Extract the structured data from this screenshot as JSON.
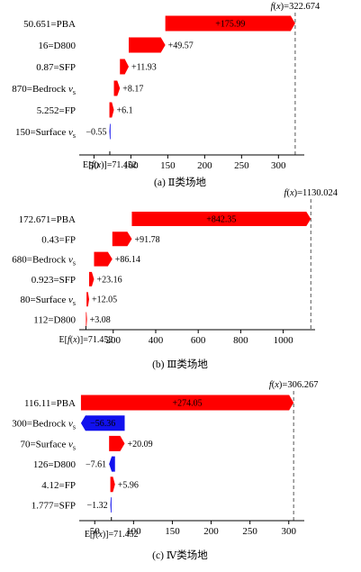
{
  "chart_data": [
    {
      "type": "waterfall",
      "caption": "(a) Ⅱ类场地",
      "fx_label": "f(x)=322.674",
      "fx_value": 322.674,
      "ex_label": "E[f(x)]=71.452",
      "base_value": 71.452,
      "xlim": [
        30,
        335
      ],
      "xticks": [
        50,
        100,
        150,
        200,
        250,
        300
      ],
      "features": [
        {
          "label": "50.651=PBA",
          "contribution": 175.99,
          "text": "+175.99"
        },
        {
          "label": "16=D800",
          "contribution": 49.57,
          "text": "+49.57"
        },
        {
          "label": "0.87=SFP",
          "contribution": 11.93,
          "text": "+11.93"
        },
        {
          "label": "870=Bedrock vs",
          "contribution": 8.17,
          "text": "+8.17"
        },
        {
          "label": "5.252=FP",
          "contribution": 6.1,
          "text": "+6.1"
        },
        {
          "label": "150=Surface vs",
          "contribution": -0.55,
          "text": "−0.55"
        }
      ]
    },
    {
      "type": "waterfall",
      "caption": "(b) Ⅲ类场地",
      "fx_label": "f(x)=1130.024",
      "fx_value": 1130.024,
      "ex_label": "E[f(x)]=71.452",
      "base_value": 71.452,
      "xlim": [
        40,
        1150
      ],
      "xticks": [
        200,
        400,
        600,
        800,
        1000
      ],
      "features": [
        {
          "label": "172.671=PBA",
          "contribution": 842.35,
          "text": "+842.35"
        },
        {
          "label": "0.43=FP",
          "contribution": 91.78,
          "text": "+91.78"
        },
        {
          "label": "680=Bedrock vs",
          "contribution": 86.14,
          "text": "+86.14"
        },
        {
          "label": "0.923=SFP",
          "contribution": 23.16,
          "text": "+23.16"
        },
        {
          "label": "80=Surface vs",
          "contribution": 12.05,
          "text": "+12.05"
        },
        {
          "label": "112=D800",
          "contribution": 3.08,
          "text": "+3.08"
        }
      ]
    },
    {
      "type": "waterfall",
      "caption": "(c) Ⅳ类场地",
      "fx_label": "f(x)=306.267",
      "fx_value": 306.267,
      "ex_label": "E[f(x)]=71.452",
      "base_value": 71.452,
      "xlim": [
        30,
        320
      ],
      "xticks": [
        50,
        100,
        150,
        200,
        250,
        300
      ],
      "features": [
        {
          "label": "116.11=PBA",
          "contribution": 274.05,
          "text": "+274.05"
        },
        {
          "label": "300=Bedrock vs",
          "contribution": -56.36,
          "text": "−56.36"
        },
        {
          "label": "70=Surface vs",
          "contribution": 20.09,
          "text": "+20.09"
        },
        {
          "label": "126=D800",
          "contribution": -7.61,
          "text": "−7.61"
        },
        {
          "label": "4.12=FP",
          "contribution": 5.96,
          "text": "+5.96"
        },
        {
          "label": "1.777=SFP",
          "contribution": -1.32,
          "text": "−1.32"
        }
      ]
    }
  ],
  "colors": {
    "positive": "#ff0000",
    "negative": "#1111ee",
    "text": "#000000"
  }
}
